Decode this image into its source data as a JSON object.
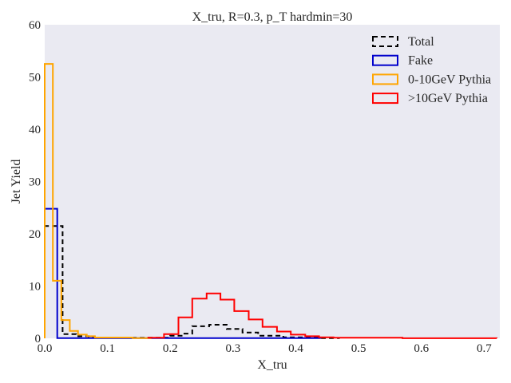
{
  "chart_data": {
    "type": "histogram",
    "title": "X_tru, R=0.3, p_T hardmin=30",
    "xlabel": "X_tru",
    "ylabel": "Jet Yield",
    "xlim": [
      0.0,
      0.725
    ],
    "ylim": [
      0,
      60
    ],
    "xticks": [
      "0.0",
      "0.1",
      "0.2",
      "0.3",
      "0.4",
      "0.5",
      "0.6",
      "0.7"
    ],
    "yticks": [
      "0",
      "10",
      "20",
      "30",
      "40",
      "50",
      "60"
    ],
    "grid": false,
    "background": "#eaeaf2",
    "legend_position": "top-right",
    "series": [
      {
        "name": "Total",
        "color": "#000000",
        "style": "dashed",
        "bins": [
          [
            0.0,
            0.0285,
            21.5
          ],
          [
            0.0285,
            0.05,
            0.8
          ],
          [
            0.05,
            0.07,
            0.4
          ],
          [
            0.07,
            0.2,
            0.1
          ],
          [
            0.2,
            0.22,
            0.5
          ],
          [
            0.22,
            0.235,
            0.9
          ],
          [
            0.235,
            0.262,
            2.3
          ],
          [
            0.262,
            0.29,
            2.6
          ],
          [
            0.29,
            0.315,
            1.8
          ],
          [
            0.315,
            0.34,
            1.1
          ],
          [
            0.34,
            0.38,
            0.5
          ],
          [
            0.38,
            0.44,
            0.2
          ],
          [
            0.44,
            0.47,
            0.05
          ]
        ]
      },
      {
        "name": "Fake",
        "color": "#0000cc",
        "style": "solid",
        "bins": [
          [
            0.0,
            0.02,
            24.8
          ],
          [
            0.02,
            0.44,
            0.05
          ]
        ]
      },
      {
        "name": "0-10GeV Pythia",
        "color": "#ffa500",
        "style": "solid",
        "bins": [
          [
            0.0,
            0.013,
            52.5
          ],
          [
            0.013,
            0.0265,
            11.0
          ],
          [
            0.0265,
            0.04,
            3.5
          ],
          [
            0.04,
            0.053,
            1.4
          ],
          [
            0.053,
            0.067,
            0.7
          ],
          [
            0.067,
            0.08,
            0.4
          ],
          [
            0.08,
            0.14,
            0.15
          ],
          [
            0.14,
            0.17,
            0.05
          ]
        ]
      },
      {
        "name": ">10GeV Pythia",
        "color": "#ff0000",
        "style": "solid",
        "bins": [
          [
            0.165,
            0.19,
            0.1
          ],
          [
            0.19,
            0.213,
            0.8
          ],
          [
            0.213,
            0.235,
            4.0
          ],
          [
            0.235,
            0.258,
            7.6
          ],
          [
            0.258,
            0.28,
            8.6
          ],
          [
            0.28,
            0.302,
            7.4
          ],
          [
            0.302,
            0.325,
            5.2
          ],
          [
            0.325,
            0.347,
            3.6
          ],
          [
            0.347,
            0.37,
            2.2
          ],
          [
            0.37,
            0.392,
            1.3
          ],
          [
            0.392,
            0.415,
            0.7
          ],
          [
            0.415,
            0.437,
            0.4
          ],
          [
            0.437,
            0.46,
            0.2
          ],
          [
            0.46,
            0.57,
            0.1
          ],
          [
            0.57,
            0.72,
            0.02
          ]
        ]
      }
    ]
  }
}
